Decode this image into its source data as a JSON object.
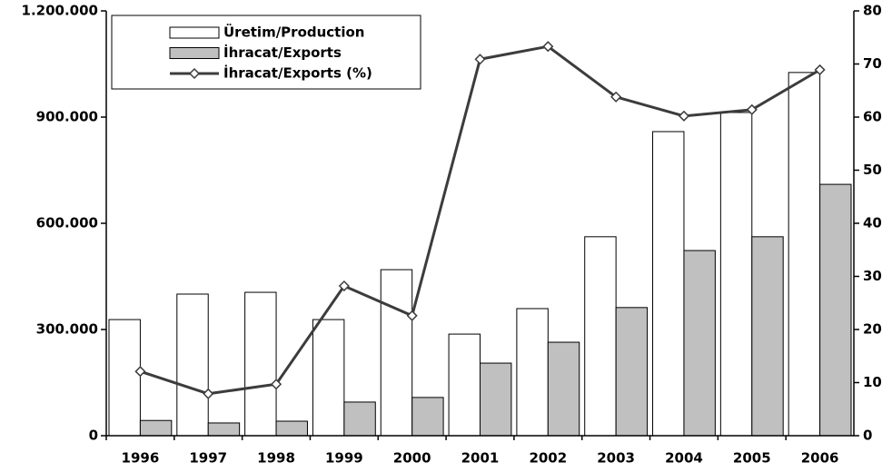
{
  "chart_data": {
    "type": "bar",
    "categories": [
      "1996",
      "1997",
      "1998",
      "1999",
      "2000",
      "2001",
      "2002",
      "2003",
      "2004",
      "2005",
      "2006"
    ],
    "series": [
      {
        "name": "Üretim/Production",
        "type": "bar",
        "axis": "y",
        "color": "#ffffff",
        "values": [
          328000,
          400000,
          405000,
          328000,
          469000,
          287000,
          359000,
          562000,
          859000,
          913000,
          1026000
        ]
      },
      {
        "name": "İhracat/Exports",
        "type": "bar",
        "axis": "y",
        "color": "#c0c0c0",
        "values": [
          43000,
          36000,
          41000,
          95000,
          108000,
          205000,
          264000,
          362000,
          523000,
          562000,
          710000
        ]
      },
      {
        "name": "İhracat/Exports (%)",
        "type": "line",
        "axis": "y2",
        "color": "#3c3c3c",
        "values": [
          12.1,
          7.9,
          9.7,
          28.2,
          22.6,
          70.9,
          73.3,
          63.8,
          60.2,
          61.4,
          68.9
        ]
      }
    ],
    "ylim": [
      0,
      1200000
    ],
    "yticks": [
      0,
      {
        "value": 300000,
        "label": "300.000"
      },
      {
        "value": 600000,
        "label": "600.000"
      },
      {
        "value": 900000,
        "label": "900.000"
      },
      {
        "value": 1200000,
        "label": "1.200.000"
      }
    ],
    "y2lim": [
      0,
      80
    ],
    "y2ticks": [
      0,
      10,
      20,
      30,
      40,
      50,
      60,
      70,
      80
    ],
    "legend": "upper left"
  }
}
